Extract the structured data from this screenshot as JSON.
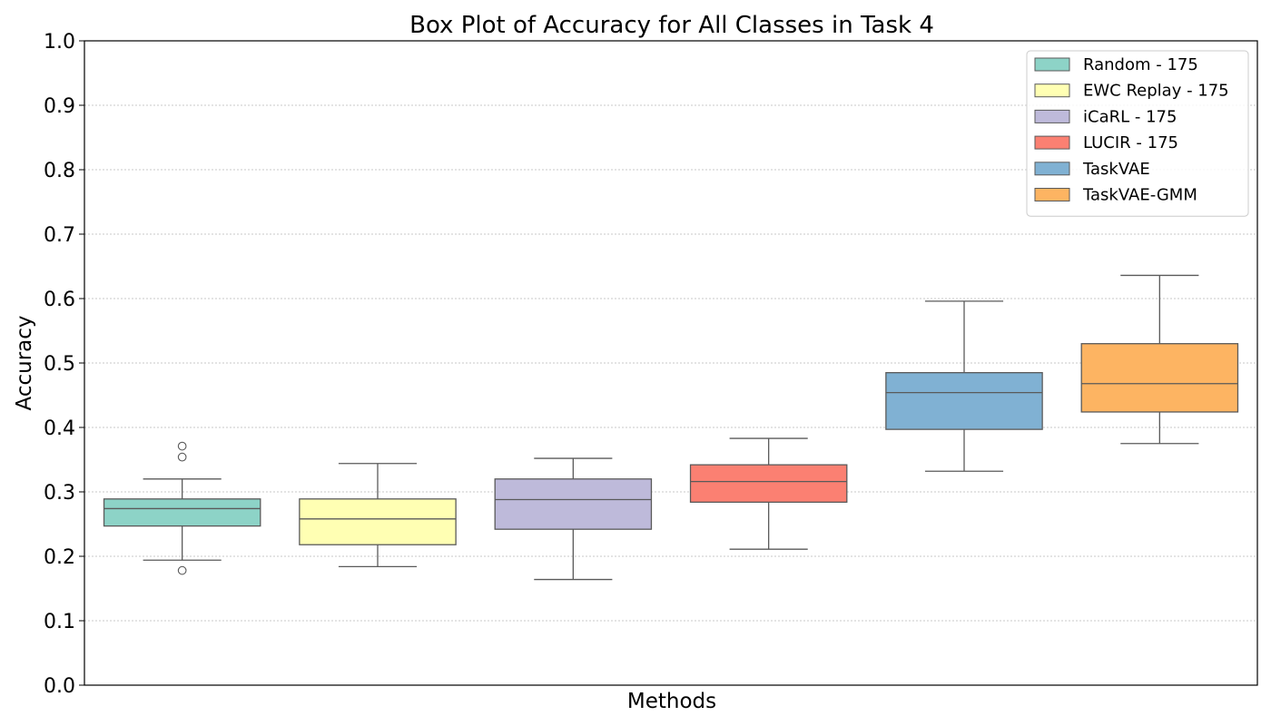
{
  "chart_data": {
    "type": "box",
    "title": "Box Plot of Accuracy for All Classes in Task 4",
    "xlabel": "Methods",
    "ylabel": "Accuracy",
    "ylim": [
      0,
      1
    ],
    "yticks": [
      "0.0",
      "0.1",
      "0.2",
      "0.3",
      "0.4",
      "0.5",
      "0.6",
      "0.7",
      "0.8",
      "0.9",
      "1.0"
    ],
    "grid": "horizontal dotted",
    "legend_position": "top-right",
    "series": [
      {
        "name": "Random - 175",
        "color": "#8dd3c7",
        "whisker_low": 0.194,
        "q1": 0.247,
        "median": 0.274,
        "q3": 0.289,
        "whisker_high": 0.32,
        "outliers": [
          0.178,
          0.354,
          0.371
        ]
      },
      {
        "name": "EWC Replay - 175",
        "color": "#ffffb3",
        "whisker_low": 0.184,
        "q1": 0.218,
        "median": 0.258,
        "q3": 0.289,
        "whisker_high": 0.344,
        "outliers": []
      },
      {
        "name": "iCaRL - 175",
        "color": "#bebada",
        "whisker_low": 0.164,
        "q1": 0.242,
        "median": 0.288,
        "q3": 0.32,
        "whisker_high": 0.352,
        "outliers": []
      },
      {
        "name": "LUCIR - 175",
        "color": "#fb8072",
        "whisker_low": 0.211,
        "q1": 0.284,
        "median": 0.316,
        "q3": 0.342,
        "whisker_high": 0.383,
        "outliers": []
      },
      {
        "name": "TaskVAE",
        "color": "#80b1d3",
        "whisker_low": 0.332,
        "q1": 0.397,
        "median": 0.454,
        "q3": 0.485,
        "whisker_high": 0.596,
        "outliers": []
      },
      {
        "name": "TaskVAE-GMM",
        "color": "#fdb462",
        "whisker_low": 0.375,
        "q1": 0.424,
        "median": 0.468,
        "q3": 0.53,
        "whisker_high": 0.636,
        "outliers": []
      }
    ]
  }
}
